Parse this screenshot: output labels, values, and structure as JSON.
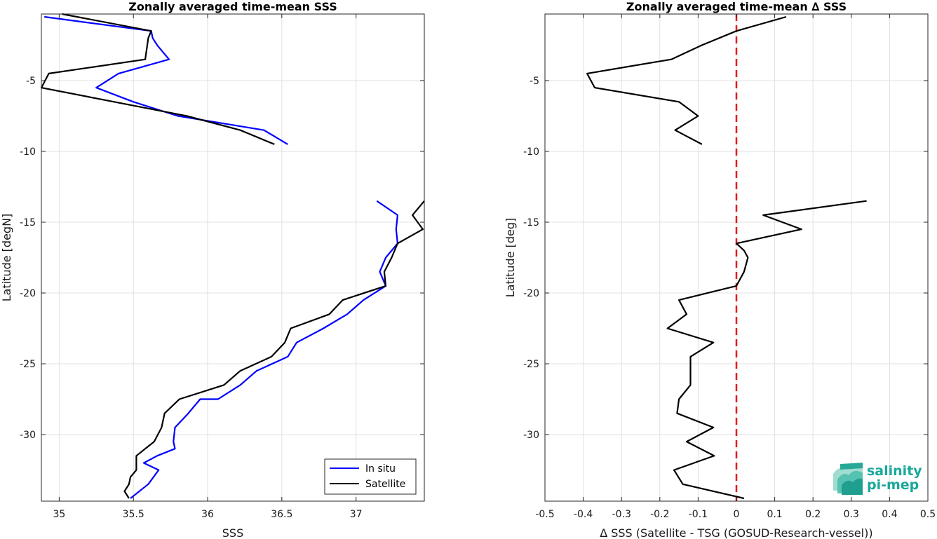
{
  "colors": {
    "in_situ": "#0000ff",
    "satellite": "#000000",
    "zero_line": "#e31a1c",
    "grid": "#e0e0e0",
    "logo": "#1aa89a"
  },
  "logo": {
    "line1": "salinity",
    "line2": "pi-mep"
  },
  "chart_data": [
    {
      "type": "line",
      "title": "Zonally averaged time-mean SSS",
      "xlabel": "SSS",
      "ylabel": "Latitude [degN]",
      "xlim": [
        34.88,
        37.46
      ],
      "ylim": [
        -34.7,
        -0.3
      ],
      "xticks": [
        35,
        35.5,
        36,
        36.5,
        37
      ],
      "xtick_labels": [
        "35",
        "35.5",
        "36",
        "36.5",
        "37"
      ],
      "yticks": [
        -5,
        -10,
        -15,
        -20,
        -25,
        -30
      ],
      "ytick_labels": [
        "-5",
        "-10",
        "-15",
        "-20",
        "-25",
        "-30"
      ],
      "grid": true,
      "legend": {
        "position": "bottom-right",
        "entries": [
          "In situ",
          "Satellite"
        ]
      },
      "series": [
        {
          "name": "In situ",
          "color": "#0000ff",
          "segments": [
            [
              [
                34.9,
                -0.5
              ],
              [
                35.62,
                -1.5
              ],
              [
                35.63,
                -2
              ],
              [
                35.66,
                -2.5
              ],
              [
                35.74,
                -3.5
              ],
              [
                35.4,
                -4.5
              ],
              [
                35.25,
                -5.5
              ],
              [
                35.5,
                -6.5
              ],
              [
                35.8,
                -7.5
              ],
              [
                36.38,
                -8.5
              ],
              [
                36.54,
                -9.5
              ]
            ],
            [
              [
                37.14,
                -13.5
              ],
              [
                37.28,
                -14.5
              ],
              [
                37.27,
                -15.5
              ],
              [
                37.28,
                -16.5
              ],
              [
                37.2,
                -17.5
              ],
              [
                37.16,
                -18.5
              ],
              [
                37.2,
                -19.5
              ],
              [
                37.05,
                -20.5
              ],
              [
                36.94,
                -21.5
              ],
              [
                36.78,
                -22.5
              ],
              [
                36.6,
                -23.5
              ],
              [
                36.54,
                -24.5
              ],
              [
                36.33,
                -25.5
              ],
              [
                36.22,
                -26.5
              ],
              [
                36.07,
                -27.5
              ],
              [
                35.95,
                -27.5
              ],
              [
                35.87,
                -28.5
              ],
              [
                35.78,
                -29.5
              ],
              [
                35.77,
                -30.5
              ],
              [
                35.78,
                -31
              ],
              [
                35.66,
                -31.5
              ],
              [
                35.57,
                -32
              ],
              [
                35.67,
                -32.5
              ],
              [
                35.6,
                -33.5
              ],
              [
                35.48,
                -34.5
              ]
            ]
          ]
        },
        {
          "name": "Satellite",
          "color": "#000000",
          "segments": [
            [
              [
                35.02,
                -0.3
              ],
              [
                35.62,
                -1.5
              ],
              [
                35.6,
                -2
              ],
              [
                35.58,
                -3.5
              ],
              [
                34.93,
                -4.5
              ],
              [
                34.88,
                -5.5
              ],
              [
                35.37,
                -6.5
              ],
              [
                35.86,
                -7.5
              ],
              [
                36.22,
                -8.5
              ],
              [
                36.45,
                -9.5
              ]
            ],
            [
              [
                37.46,
                -13.5
              ],
              [
                37.38,
                -14.5
              ],
              [
                37.45,
                -15.5
              ],
              [
                37.28,
                -16.5
              ],
              [
                37.24,
                -17.5
              ],
              [
                37.19,
                -18.5
              ],
              [
                37.2,
                -19.5
              ],
              [
                36.91,
                -20.5
              ],
              [
                36.82,
                -21.5
              ],
              [
                36.56,
                -22.5
              ],
              [
                36.52,
                -23.5
              ],
              [
                36.43,
                -24.5
              ],
              [
                36.22,
                -25.5
              ],
              [
                36.11,
                -26.5
              ],
              [
                35.81,
                -27.5
              ],
              [
                35.71,
                -28.5
              ],
              [
                35.69,
                -29.5
              ],
              [
                35.64,
                -30.5
              ],
              [
                35.52,
                -31.5
              ],
              [
                35.52,
                -32.5
              ],
              [
                35.48,
                -33
              ],
              [
                35.47,
                -33.5
              ],
              [
                35.44,
                -34
              ],
              [
                35.47,
                -34.5
              ]
            ]
          ]
        }
      ]
    },
    {
      "type": "line",
      "title": "Zonally averaged time-mean ∆ SSS",
      "xlabel": "∆ SSS (Satellite - TSG (GOSUD-Research-vessel))",
      "ylabel": "Latitude [deg]",
      "xlim": [
        -0.5,
        0.5
      ],
      "ylim": [
        -34.7,
        -0.3
      ],
      "xticks": [
        -0.5,
        -0.4,
        -0.3,
        -0.2,
        -0.1,
        0,
        0.1,
        0.2,
        0.3,
        0.4,
        0.5
      ],
      "xtick_labels": [
        "-0.5",
        "-0.4",
        "-0.3",
        "-0.2",
        "-0.1",
        "0",
        "0.1",
        "0.2",
        "0.3",
        "0.4",
        "0.5"
      ],
      "yticks": [
        -5,
        -10,
        -15,
        -20,
        -25,
        -30
      ],
      "ytick_labels": [
        "-5",
        "-10",
        "-15",
        "-20",
        "-25",
        "-30"
      ],
      "grid": true,
      "reference_line": {
        "x": 0,
        "style": "dashed",
        "color": "#e31a1c"
      },
      "series": [
        {
          "color": "#000000",
          "segments": [
            [
              [
                0.13,
                -0.5
              ],
              [
                0,
                -1.5
              ],
              [
                -0.09,
                -2.5
              ],
              [
                -0.17,
                -3.5
              ],
              [
                -0.39,
                -4.5
              ],
              [
                -0.37,
                -5.5
              ],
              [
                -0.15,
                -6.5
              ],
              [
                -0.1,
                -7.5
              ],
              [
                -0.16,
                -8.5
              ],
              [
                -0.09,
                -9.5
              ]
            ],
            [
              [
                0.34,
                -13.5
              ],
              [
                0.07,
                -14.5
              ],
              [
                0.17,
                -15.5
              ],
              [
                0,
                -16.5
              ],
              [
                0.02,
                -17
              ],
              [
                0.03,
                -17.5
              ],
              [
                0.02,
                -18.5
              ],
              [
                0,
                -19.5
              ],
              [
                -0.15,
                -20.5
              ],
              [
                -0.13,
                -21.5
              ],
              [
                -0.18,
                -22.5
              ],
              [
                -0.06,
                -23.5
              ],
              [
                -0.12,
                -24.5
              ],
              [
                -0.12,
                -25.5
              ],
              [
                -0.12,
                -26.5
              ],
              [
                -0.15,
                -27.5
              ],
              [
                -0.155,
                -28.5
              ],
              [
                -0.06,
                -29.5
              ],
              [
                -0.13,
                -30.5
              ],
              [
                -0.058,
                -31.5
              ],
              [
                -0.163,
                -32.5
              ],
              [
                -0.14,
                -33.5
              ],
              [
                0.02,
                -34.5
              ]
            ]
          ]
        }
      ]
    }
  ]
}
